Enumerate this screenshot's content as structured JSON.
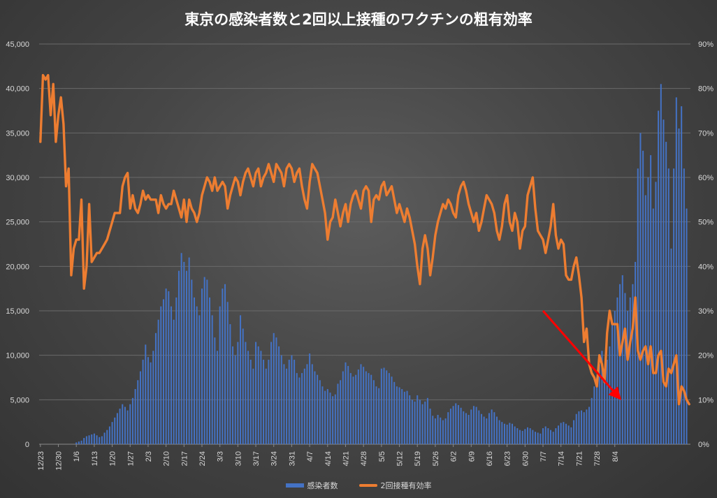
{
  "chart_data": {
    "type": "bar",
    "title": "東京の感染者数と2回以上接種のワクチンの粗有効率",
    "xlabel": "",
    "ylabel": "",
    "ylim": [
      0,
      45000
    ],
    "y2lim": [
      0,
      0.9
    ],
    "y_ticks": [
      "0",
      "5,000",
      "10,000",
      "15,000",
      "20,000",
      "25,000",
      "30,000",
      "35,000",
      "40,000",
      "45,000"
    ],
    "y2_ticks": [
      "0%",
      "10%",
      "20%",
      "30%",
      "40%",
      "50%",
      "60%",
      "70%",
      "80%",
      "90%"
    ],
    "grid": true,
    "legend_position": "bottom",
    "x_tick_labels": [
      "12/23",
      "12/30",
      "1/6",
      "1/13",
      "1/20",
      "1/27",
      "2/3",
      "2/10",
      "2/17",
      "2/24",
      "3/3",
      "3/10",
      "3/17",
      "3/24",
      "3/31",
      "4/7",
      "4/14",
      "4/21",
      "4/28",
      "5/5",
      "5/12",
      "5/19",
      "5/26",
      "6/2",
      "6/9",
      "6/16",
      "6/23",
      "6/30",
      "7/7",
      "7/14",
      "7/21",
      "7/28",
      "8/4"
    ],
    "first_date": "12/23",
    "series": [
      {
        "name": "感染者数",
        "axis": "left",
        "color": "#4472c4",
        "values": [
          0,
          0,
          0,
          0,
          0,
          0,
          0,
          0,
          0,
          0,
          0,
          0,
          0,
          0,
          200,
          300,
          400,
          700,
          900,
          1000,
          1100,
          1200,
          1000,
          800,
          900,
          1300,
          1600,
          2000,
          2500,
          3000,
          3500,
          4000,
          4500,
          4200,
          3800,
          4500,
          5200,
          6200,
          7200,
          8200,
          9500,
          11200,
          9800,
          9200,
          10500,
          12500,
          14000,
          15500,
          16300,
          17500,
          17200,
          15500,
          14000,
          16500,
          19500,
          21500,
          20500,
          19500,
          21000,
          18500,
          16500,
          15500,
          14500,
          17500,
          18800,
          18500,
          16500,
          14500,
          12000,
          10500,
          15500,
          17500,
          18000,
          16000,
          13500,
          11000,
          10000,
          11500,
          14500,
          13000,
          11500,
          10500,
          9500,
          8500,
          11500,
          11000,
          10500,
          9500,
          8500,
          9500,
          11500,
          12500,
          12000,
          11000,
          10000,
          9000,
          8500,
          9500,
          10000,
          9500,
          8000,
          7500,
          8000,
          8500,
          9000,
          10200,
          9000,
          8200,
          7800,
          7200,
          6500,
          6000,
          6200,
          5800,
          5400,
          5600,
          6800,
          7200,
          8200,
          9200,
          8800,
          8000,
          7600,
          7800,
          8400,
          9000,
          8700,
          8200,
          8000,
          7800,
          7200,
          6500,
          6300,
          8500,
          8600,
          8300,
          8000,
          7600,
          7000,
          6500,
          6400,
          6200,
          5900,
          6000,
          5500,
          5000,
          4800,
          5500,
          5000,
          4500,
          4800,
          5200,
          4000,
          3200,
          2900,
          3300,
          3000,
          2700,
          2900,
          3600,
          4000,
          4300,
          4600,
          4400,
          4100,
          3700,
          3500,
          3300,
          3900,
          4300,
          4200,
          3800,
          3400,
          3100,
          2900,
          3500,
          3900,
          3600,
          3100,
          2700,
          2500,
          2300,
          2200,
          2400,
          2300,
          2000,
          1800,
          1600,
          1500,
          1700,
          1900,
          1800,
          1600,
          1400,
          1300,
          1200,
          1800,
          2000,
          1800,
          1600,
          1400,
          1800,
          2100,
          2400,
          2500,
          2300,
          2100,
          1900,
          2700,
          3400,
          3700,
          3800,
          3600,
          3900,
          4200,
          5200,
          6500,
          7500,
          9000,
          10500,
          8500,
          9500,
          11000,
          13500,
          15000,
          16500,
          18000,
          19000,
          17000,
          15000,
          16500,
          18000,
          20500,
          31000,
          35000,
          33000,
          28000,
          30000,
          32500,
          26500,
          29500,
          37500,
          40500,
          36500,
          34000,
          31000,
          22000,
          31000,
          39000,
          35500,
          38000,
          31000,
          26500
        ]
      },
      {
        "name": "2回接種有効率",
        "axis": "right",
        "color": "#ed7d31",
        "values": [
          0.68,
          0.83,
          0.82,
          0.83,
          0.74,
          0.81,
          0.68,
          0.74,
          0.78,
          0.72,
          0.58,
          0.62,
          0.38,
          0.44,
          0.46,
          0.46,
          0.55,
          0.35,
          0.4,
          0.54,
          0.41,
          0.42,
          0.43,
          0.43,
          0.44,
          0.45,
          0.46,
          0.48,
          0.5,
          0.52,
          0.52,
          0.52,
          0.58,
          0.6,
          0.61,
          0.53,
          0.56,
          0.53,
          0.52,
          0.54,
          0.57,
          0.55,
          0.56,
          0.55,
          0.55,
          0.55,
          0.52,
          0.56,
          0.54,
          0.53,
          0.54,
          0.54,
          0.57,
          0.55,
          0.53,
          0.51,
          0.55,
          0.5,
          0.55,
          0.53,
          0.52,
          0.5,
          0.52,
          0.56,
          0.58,
          0.6,
          0.59,
          0.57,
          0.6,
          0.57,
          0.58,
          0.59,
          0.58,
          0.53,
          0.56,
          0.58,
          0.6,
          0.59,
          0.56,
          0.59,
          0.61,
          0.62,
          0.6,
          0.58,
          0.61,
          0.62,
          0.58,
          0.6,
          0.61,
          0.63,
          0.61,
          0.59,
          0.63,
          0.62,
          0.61,
          0.58,
          0.62,
          0.63,
          0.62,
          0.59,
          0.61,
          0.62,
          0.58,
          0.55,
          0.53,
          0.59,
          0.63,
          0.62,
          0.61,
          0.58,
          0.55,
          0.52,
          0.46,
          0.5,
          0.51,
          0.55,
          0.52,
          0.49,
          0.52,
          0.54,
          0.5,
          0.54,
          0.56,
          0.57,
          0.55,
          0.53,
          0.57,
          0.58,
          0.57,
          0.5,
          0.55,
          0.56,
          0.55,
          0.58,
          0.59,
          0.56,
          0.57,
          0.58,
          0.55,
          0.52,
          0.54,
          0.52,
          0.5,
          0.53,
          0.51,
          0.48,
          0.45,
          0.4,
          0.36,
          0.44,
          0.47,
          0.44,
          0.38,
          0.42,
          0.47,
          0.5,
          0.52,
          0.54,
          0.53,
          0.55,
          0.54,
          0.52,
          0.51,
          0.56,
          0.58,
          0.59,
          0.57,
          0.54,
          0.52,
          0.5,
          0.52,
          0.48,
          0.5,
          0.53,
          0.56,
          0.55,
          0.54,
          0.52,
          0.48,
          0.46,
          0.49,
          0.54,
          0.56,
          0.5,
          0.48,
          0.52,
          0.5,
          0.44,
          0.48,
          0.49,
          0.56,
          0.58,
          0.6,
          0.53,
          0.48,
          0.47,
          0.46,
          0.43,
          0.46,
          0.49,
          0.54,
          0.47,
          0.44,
          0.46,
          0.45,
          0.38,
          0.37,
          0.37,
          0.4,
          0.42,
          0.38,
          0.33,
          0.23,
          0.26,
          0.18,
          0.16,
          0.15,
          0.13,
          0.2,
          0.18,
          0.14,
          0.25,
          0.3,
          0.27,
          0.27,
          0.27,
          0.2,
          0.23,
          0.26,
          0.19,
          0.23,
          0.26,
          0.33,
          0.21,
          0.19,
          0.21,
          0.22,
          0.18,
          0.22,
          0.16,
          0.16,
          0.2,
          0.21,
          0.14,
          0.13,
          0.17,
          0.16,
          0.18,
          0.2,
          0.09,
          0.13,
          0.12,
          0.1,
          0.09
        ]
      }
    ],
    "annotations": [
      {
        "type": "trend-arrow",
        "color": "#ff0000",
        "from": [
          "7/7",
          0.3
        ],
        "to": [
          "8/6",
          0.11
        ]
      }
    ]
  }
}
